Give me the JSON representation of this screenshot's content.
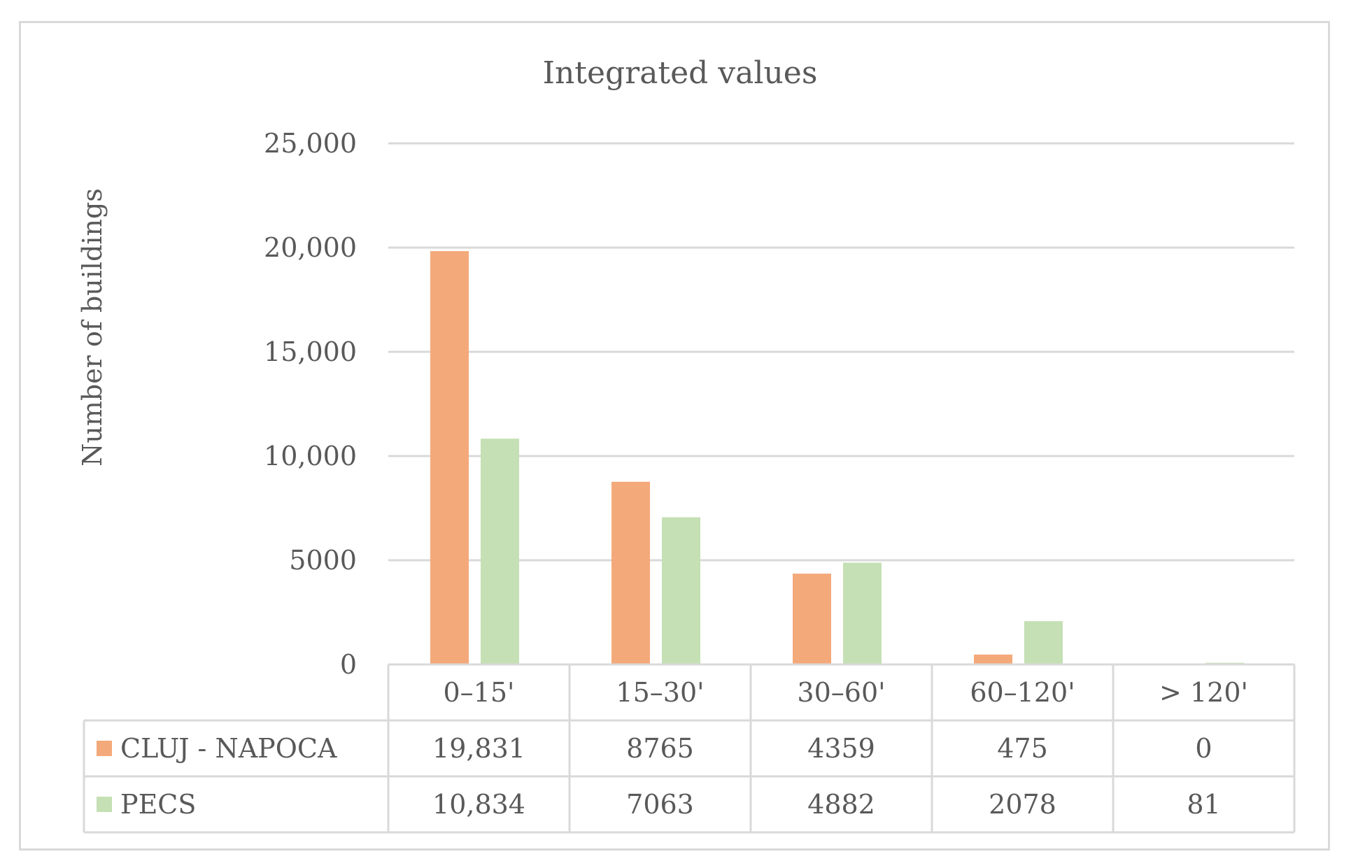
{
  "chart_data": {
    "type": "bar",
    "title": "Integrated values",
    "xlabel": "",
    "ylabel": "Number of buildings",
    "categories": [
      "0–15'",
      "15–30'",
      "30–60'",
      "60–120'",
      "> 120'"
    ],
    "series": [
      {
        "name": "CLUJ - NAPOCA",
        "color": "#f4a97a",
        "values": [
          19831,
          8765,
          4359,
          475,
          0
        ],
        "value_labels": [
          "19,831",
          "8765",
          "4359",
          "475",
          "0"
        ]
      },
      {
        "name": "PECS",
        "color": "#c5e0b4",
        "values": [
          10834,
          7063,
          4882,
          2078,
          81
        ],
        "value_labels": [
          "10,834",
          "7063",
          "4882",
          "2078",
          "81"
        ]
      }
    ],
    "ylim": [
      0,
      25000
    ],
    "yticks": [
      0,
      5000,
      10000,
      15000,
      20000,
      25000
    ],
    "ytick_labels": [
      "0",
      "5000",
      "10,000",
      "15,000",
      "20,000",
      "25,000"
    ],
    "grid": true,
    "data_table": true,
    "gridline_color": "#d9d9d9",
    "text_color": "#595959"
  }
}
